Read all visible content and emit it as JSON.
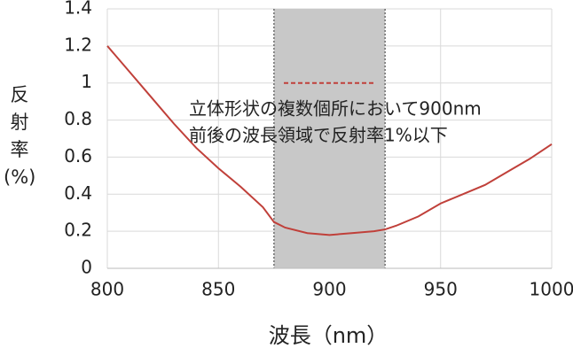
{
  "chart_data": {
    "type": "line",
    "x_label": "波長（nm）",
    "y_label": "反射率(%)",
    "annotation": [
      "立体形状の複数個所において900nm",
      "前後の波長領域で反射率1%以下"
    ],
    "highlight_band": [
      875,
      925
    ],
    "threshold": 1,
    "x": [
      800,
      810,
      820,
      830,
      840,
      850,
      860,
      870,
      875,
      880,
      890,
      900,
      910,
      920,
      925,
      930,
      940,
      950,
      960,
      970,
      980,
      990,
      1000
    ],
    "series": [
      {
        "name": "反射率",
        "color": "#c0403a",
        "values": [
          1.2,
          1.06,
          0.92,
          0.78,
          0.65,
          0.54,
          0.44,
          0.33,
          0.25,
          0.22,
          0.19,
          0.18,
          0.19,
          0.2,
          0.21,
          0.23,
          0.28,
          0.35,
          0.4,
          0.45,
          0.52,
          0.59,
          0.67
        ]
      }
    ],
    "xlim": [
      800,
      1000
    ],
    "xticks": [
      800,
      850,
      900,
      950,
      1000
    ],
    "ylim": [
      0,
      1.4
    ],
    "yticks": [
      0,
      0.2,
      0.4,
      0.6,
      0.8,
      1,
      1.2,
      1.4
    ],
    "grid": true
  }
}
